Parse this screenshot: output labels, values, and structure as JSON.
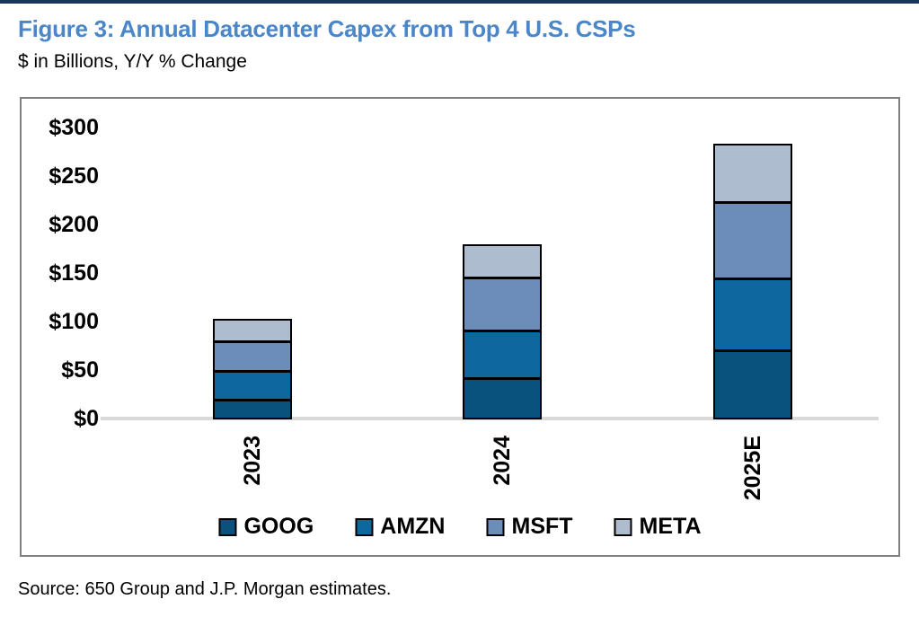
{
  "header": {
    "title": "Figure 3: Annual Datacenter Capex from Top 4 U.S. CSPs",
    "subtitle": "$ in Billions, Y/Y % Change"
  },
  "footer": {
    "source": "Source: 650 Group and J.P. Morgan estimates."
  },
  "colors": {
    "title_blue": "#4A86C8",
    "top_rule_navy": "#17375E",
    "chart_border_gray": "#808080",
    "baseline_gray": "#D9D9D9",
    "segment_border_black": "#000000",
    "goog": "#09527D",
    "amzn": "#0D68A0",
    "msft": "#6C8CBA",
    "meta": "#AEBCCF"
  },
  "chart_data": {
    "type": "bar",
    "stacked": true,
    "title": "Figure 3: Annual Datacenter Capex from Top 4 U.S. CSPs",
    "subtitle": "$ in Billions, Y/Y % Change",
    "categories": [
      "2023",
      "2024",
      "2025E"
    ],
    "series": [
      {
        "name": "GOOG",
        "color": "#09527D",
        "values": [
          18,
          41,
          70
        ]
      },
      {
        "name": "AMZN",
        "color": "#0D68A0",
        "values": [
          29,
          48,
          73
        ]
      },
      {
        "name": "MSFT",
        "color": "#6C8CBA",
        "values": [
          31,
          55,
          78
        ]
      },
      {
        "name": "META",
        "color": "#AEBCCF",
        "values": [
          22,
          33,
          60
        ]
      }
    ],
    "xlabel": "",
    "ylabel": "$ in Billions",
    "ylim": [
      0,
      300
    ],
    "ytick_step": 50,
    "ytick_labels": [
      "$0",
      "$50",
      "$100",
      "$150",
      "$200",
      "$250",
      "$300"
    ],
    "legend_position": "bottom",
    "grid": false
  }
}
